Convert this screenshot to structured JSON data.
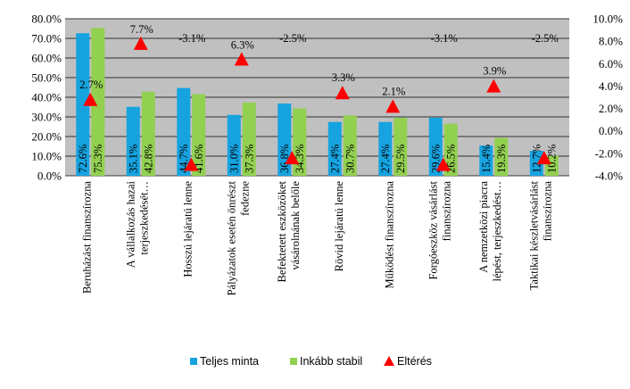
{
  "chart_data": {
    "type": "bar",
    "categories": [
      [
        "Beruházást finanszírozna"
      ],
      [
        "A vállalkozás hazai",
        "terjeszkedését…"
      ],
      [
        "Hosszú lejáratú lenne"
      ],
      [
        "Pályázatok esetén önrészt",
        "fedezne"
      ],
      [
        "Befektetett eszközöket",
        "vásárolnának belőle"
      ],
      [
        "Rövid lejáratú lenne"
      ],
      [
        "Működést finanszírozna"
      ],
      [
        "Forgóeszköz vásárlást",
        "finanszírozna"
      ],
      [
        "A nemzetközi piacra",
        "lépést, terjeszkedést…"
      ],
      [
        "Taktikai készletvásárlást",
        "finanszírozna"
      ]
    ],
    "series": [
      {
        "name": "Teljes minta",
        "axis": "left",
        "color": "#16A3E0",
        "values": [
          72.6,
          35.1,
          44.7,
          31.0,
          36.8,
          27.4,
          27.4,
          29.6,
          15.4,
          12.7
        ],
        "labels": [
          "72.6%",
          "35.1%",
          "44.7%",
          "31.0%",
          "36.8%",
          "27.4%",
          "27.4%",
          "29.6%",
          "15.4%",
          "12.7%"
        ]
      },
      {
        "name": "Inkább stabil",
        "axis": "left",
        "color": "#92D050",
        "values": [
          75.3,
          42.8,
          41.6,
          37.3,
          34.3,
          30.7,
          29.5,
          26.5,
          19.3,
          10.2
        ],
        "labels": [
          "75.3%",
          "42.8%",
          "41.6%",
          "37.3%",
          "34.3%",
          "30.7%",
          "29.5%",
          "26.5%",
          "19.3%",
          "10.2%"
        ]
      },
      {
        "name": "Eltérés",
        "axis": "right",
        "marker": "triangle",
        "color": "#FF0000",
        "values": [
          2.7,
          7.7,
          -3.1,
          6.3,
          -2.5,
          3.3,
          2.1,
          -3.1,
          3.9,
          -2.5
        ],
        "labels": [
          "2.7%",
          "7.7%",
          "-3.1%",
          "6.3%",
          "-2.5%",
          "3.3%",
          "2.1%",
          "-3.1%",
          "3.9%",
          "-2.5%"
        ]
      }
    ],
    "y_left": {
      "ylim": [
        0,
        80
      ],
      "ticks": [
        "0.0%",
        "10.0%",
        "20.0%",
        "30.0%",
        "40.0%",
        "50.0%",
        "60.0%",
        "70.0%",
        "80.0%"
      ]
    },
    "y_right": {
      "ylim": [
        -4,
        10
      ],
      "ticks": [
        "-4.0%",
        "-2.0%",
        "0.0%",
        "2.0%",
        "4.0%",
        "6.0%",
        "8.0%",
        "10.0%"
      ]
    },
    "plot_background": "#C0C0C0",
    "grid": true,
    "legend_position": "bottom"
  }
}
